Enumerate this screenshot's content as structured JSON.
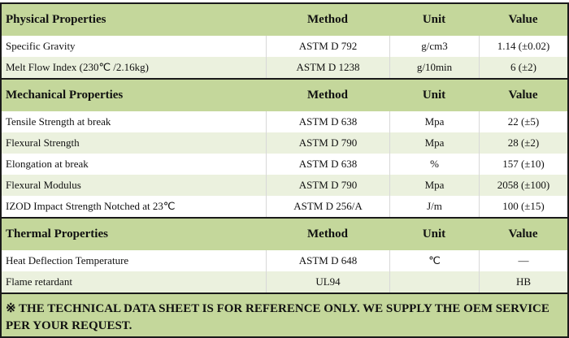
{
  "columns": {
    "method": "Method",
    "unit": "Unit",
    "value": "Value"
  },
  "sections": [
    {
      "title": "Physical Properties",
      "rows": [
        {
          "name": "Specific Gravity",
          "method": "ASTM D 792",
          "unit": "g/cm3",
          "value": "1.14 (±0.02)"
        },
        {
          "name": "Melt Flow Index  (230℃ /2.16kg)",
          "method": "ASTM D 1238",
          "unit": "g/10min",
          "value": "6 (±2)"
        }
      ]
    },
    {
      "title": "Mechanical Properties",
      "rows": [
        {
          "name": "Tensile Strength at break",
          "method": "ASTM D 638",
          "unit": "Mpa",
          "value": "22 (±5)"
        },
        {
          "name": "Flexural Strength",
          "method": "ASTM D 790",
          "unit": "Mpa",
          "value": "28 (±2)"
        },
        {
          "name": "Elongation at break",
          "method": "ASTM D 638",
          "unit": "%",
          "value": "157 (±10)"
        },
        {
          "name": "Flexural Modulus",
          "method": "ASTM D 790",
          "unit": "Mpa",
          "value": "2058 (±100)"
        },
        {
          "name": "IZOD Impact Strength Notched at 23℃",
          "method": "ASTM D 256/A",
          "unit": "J/m",
          "value": "100 (±15)"
        }
      ]
    },
    {
      "title": "Thermal Properties",
      "rows": [
        {
          "name": "Heat Deflection Temperature",
          "method": "ASTM D 648",
          "unit": "℃",
          "value": "—"
        },
        {
          "name": "Flame retardant",
          "method": "UL94",
          "unit": "",
          "value": "HB"
        }
      ]
    }
  ],
  "footer": "※ THE TECHNICAL DATA SHEET IS FOR REFERENCE ONLY. WE SUPPLY THE OEM SERVICE PER YOUR REQUEST.",
  "colors": {
    "header": "#c4d79b",
    "alt_row": "#ebf1de",
    "border": "#1a1a1a"
  }
}
